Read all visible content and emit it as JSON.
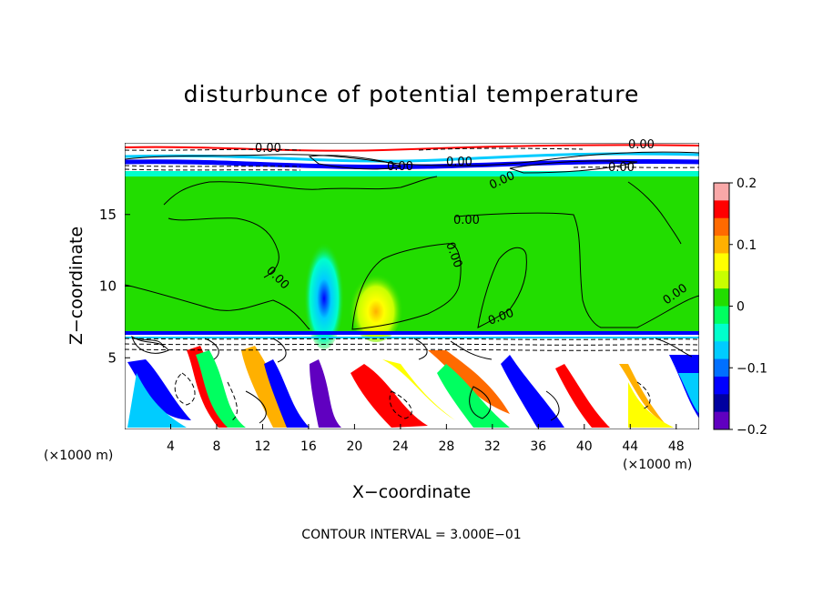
{
  "chart_data": {
    "type": "heatmap",
    "title": "disturbunce of potential temperature",
    "xlabel": "X−coordinate",
    "ylabel": "Z−coordinate",
    "x_unit_label": "(×1000 m)",
    "x_unit_label_right": "(×1000 m)",
    "footer": "CONTOUR INTERVAL = 3.000E−01",
    "xlim": [
      0,
      50
    ],
    "ylim": [
      0,
      20
    ],
    "x_ticks": [
      4,
      8,
      12,
      16,
      20,
      24,
      28,
      32,
      36,
      40,
      44,
      48
    ],
    "y_ticks": [
      5,
      10,
      15
    ],
    "colorbar": {
      "range": [
        -0.2,
        0.2
      ],
      "ticks": [
        0.2,
        0.1,
        0,
        -0.1,
        -0.2
      ],
      "tick_labels": [
        "0.2",
        "0.1",
        "0",
        "−0.1",
        "−0.2"
      ],
      "colors": [
        "#f9a8a8",
        "#ff0000",
        "#ff6a00",
        "#ffb000",
        "#ffff00",
        "#c8ff00",
        "#22dd00",
        "#00ff60",
        "#00ffcc",
        "#00ccff",
        "#0070ff",
        "#0000ff",
        "#0000a0",
        "#6000c0"
      ]
    },
    "contour_labels": [
      "0.00",
      "0.00",
      "0.00",
      "0.00",
      "0.00",
      "0.00",
      "0.00",
      "0.00",
      "0.00",
      "0.00",
      "0.00"
    ],
    "contour_interval": 0.3,
    "regions": [
      {
        "name": "upper-layer",
        "z": [
          18,
          20
        ],
        "pattern": "dense contours"
      },
      {
        "name": "middle-layer",
        "z": [
          6.7,
          18
        ],
        "value": 0
      },
      {
        "name": "lower-layer",
        "z": [
          0,
          6.7
        ],
        "pattern": "turbulent"
      }
    ],
    "anomalies": [
      {
        "x": 18,
        "z": 9,
        "value": -0.08,
        "label": "cool"
      },
      {
        "x": 21.5,
        "z": 8.5,
        "value": 0.1,
        "label": "warm"
      }
    ]
  }
}
